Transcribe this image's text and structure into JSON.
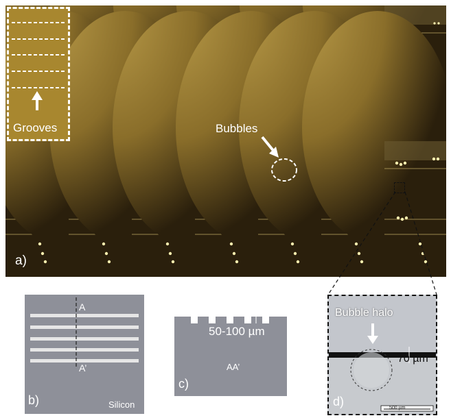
{
  "panel_a": {
    "letter": "a)",
    "grooves_label": "Grooves",
    "bubbles_label": "Bubbles"
  },
  "panel_b": {
    "letter": "b)",
    "section_top": "A",
    "section_bottom": "A’",
    "material": "Silicon"
  },
  "panel_c": {
    "letter": "c)",
    "depth": "50-100 µm",
    "section": "AA’"
  },
  "panel_d": {
    "letter": "d)",
    "halo_label": "Bubble halo",
    "gap": "70 µm",
    "scale_bar": "500 µm"
  },
  "colors": {
    "panel_gray": "#8e9099",
    "groove_white": "#e6e6e6",
    "film_bg": "#2a1f0c",
    "bubble": "#fff3b0"
  }
}
